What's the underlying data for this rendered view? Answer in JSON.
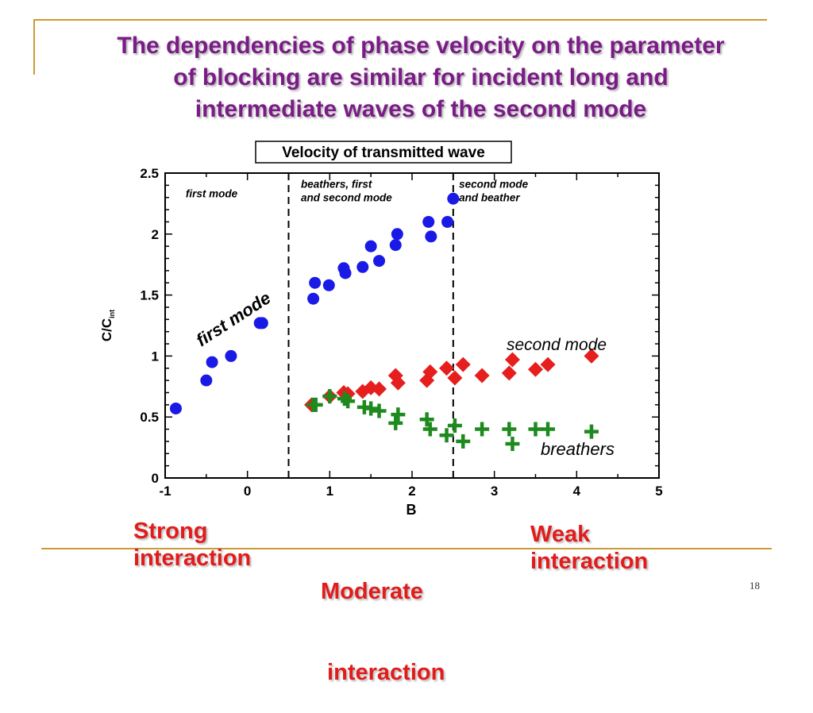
{
  "slide": {
    "title_lines": [
      "The dependencies of phase velocity on the parameter",
      "of blocking are similar for incident long and",
      "intermediate waves of the second mode"
    ],
    "page_number": "18",
    "interaction_labels": [
      {
        "lines": [
          "Strong",
          "interaction"
        ]
      },
      {
        "lines": [
          "Moderate",
          " interaction"
        ]
      },
      {
        "lines": [
          "Weak",
          "interaction"
        ]
      }
    ],
    "accent_color": "#cc9a33",
    "title_color": "#7a1c86",
    "label_color": "#e21b1b"
  },
  "chart_data": {
    "type": "scatter",
    "title": "Velocity of transmitted wave",
    "xlabel": "B",
    "ylabel_main": "C/C",
    "ylabel_sub": "int",
    "xlim": [
      -1,
      5
    ],
    "ylim": [
      0,
      2.5
    ],
    "xticks": [
      -1,
      0,
      1,
      2,
      3,
      4,
      5
    ],
    "yticks": [
      0,
      0.5,
      1,
      1.5,
      2,
      2.5
    ],
    "xtick_labels": [
      "-1",
      "0",
      "1",
      "2",
      "3",
      "4",
      "5"
    ],
    "ytick_labels": [
      "0",
      "0.5",
      "1",
      "1.5",
      "2",
      "2.5"
    ],
    "grid": false,
    "vlines": [
      0.5,
      2.5
    ],
    "region_labels": [
      {
        "lines": [
          "first mode"
        ]
      },
      {
        "lines": [
          "beathers, first",
          "and second mode"
        ]
      },
      {
        "lines": [
          "second mode",
          "and beather"
        ]
      }
    ],
    "series": [
      {
        "name": "first mode",
        "marker": "circle",
        "color": "#1a1ae6",
        "x": [
          -0.87,
          -0.5,
          -0.43,
          -0.2,
          0.15,
          0.18,
          0.8,
          0.82,
          0.99,
          1.17,
          1.19,
          1.4,
          1.5,
          1.6,
          1.8,
          1.82,
          2.2,
          2.23,
          2.43,
          2.5
        ],
        "y": [
          0.57,
          0.8,
          0.95,
          1.0,
          1.27,
          1.27,
          1.47,
          1.6,
          1.58,
          1.72,
          1.68,
          1.73,
          1.9,
          1.78,
          1.91,
          2.0,
          2.1,
          1.98,
          2.1,
          2.29
        ]
      },
      {
        "name": "second mode",
        "marker": "diamond",
        "color": "#e61e1e",
        "x": [
          0.78,
          1.0,
          1.17,
          1.22,
          1.4,
          1.5,
          1.6,
          1.8,
          1.83,
          2.18,
          2.22,
          2.42,
          2.52,
          2.62,
          2.85,
          3.18,
          3.22,
          3.5,
          3.65,
          4.18
        ],
        "y": [
          0.6,
          0.67,
          0.7,
          0.69,
          0.71,
          0.74,
          0.73,
          0.84,
          0.78,
          0.8,
          0.87,
          0.9,
          0.82,
          0.93,
          0.84,
          0.86,
          0.97,
          0.89,
          0.93,
          1.0
        ]
      },
      {
        "name": "breathers",
        "marker": "plus",
        "color": "#1e8a1e",
        "x": [
          0.8,
          0.83,
          1.0,
          1.18,
          1.22,
          1.42,
          1.5,
          1.6,
          1.8,
          1.83,
          2.18,
          2.22,
          2.42,
          2.52,
          2.62,
          2.85,
          3.18,
          3.22,
          3.5,
          3.65,
          4.18
        ],
        "y": [
          0.6,
          0.6,
          0.67,
          0.65,
          0.63,
          0.58,
          0.57,
          0.55,
          0.45,
          0.52,
          0.48,
          0.4,
          0.35,
          0.43,
          0.3,
          0.4,
          0.4,
          0.28,
          0.4,
          0.4,
          0.38
        ]
      }
    ],
    "series_labels": [
      {
        "text": "first mode",
        "color": "#1a1ae6"
      },
      {
        "text": "second mode",
        "color": "#e61e1e"
      },
      {
        "text": "breathers",
        "color": "#1e8a1e"
      }
    ]
  }
}
